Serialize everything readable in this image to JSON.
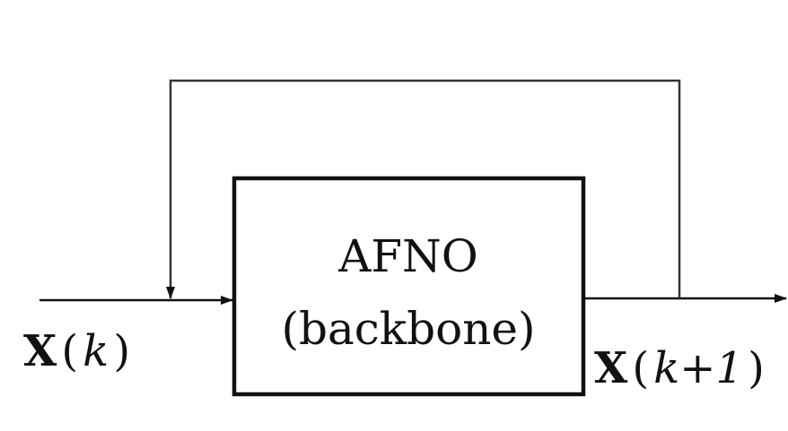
{
  "block": {
    "title": "AFNO",
    "subtitle": "(backbone)"
  },
  "input_label": {
    "symbol": "X",
    "open": "(",
    "index": "k",
    "close": ")"
  },
  "output_label": {
    "symbol": "X",
    "open": "(",
    "index": "k+1",
    "close": ")"
  }
}
